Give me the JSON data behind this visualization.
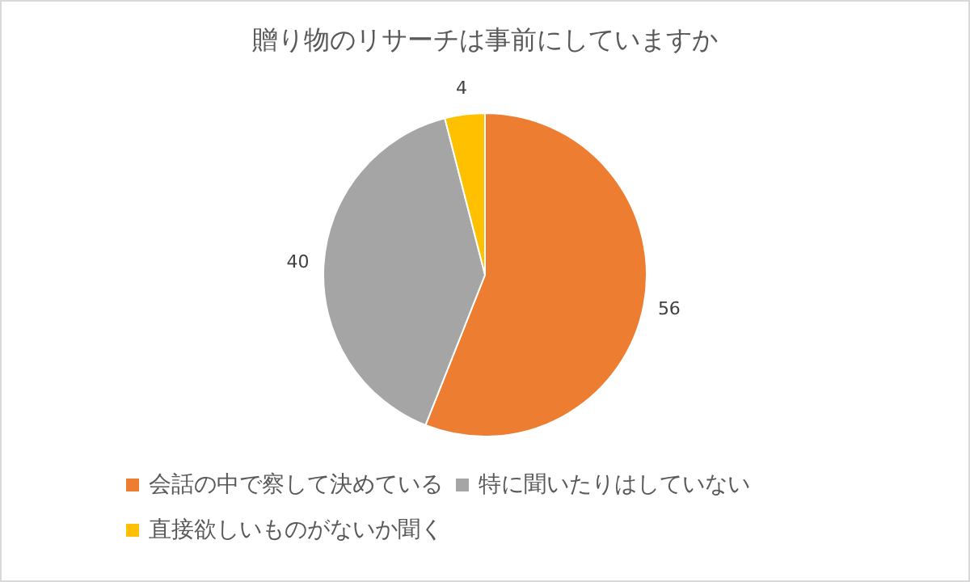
{
  "chart_data": {
    "type": "pie",
    "title": "贈り物のリサーチは事前にしていますか",
    "categories": [
      "会話の中で察して決めている",
      "特に聞いたりはしていない",
      "直接欲しいものがないか聞く"
    ],
    "values": [
      56,
      40,
      4
    ],
    "colors": [
      "#ed7d31",
      "#a5a5a5",
      "#ffc000"
    ],
    "data_labels": true,
    "legend": "bottom"
  }
}
